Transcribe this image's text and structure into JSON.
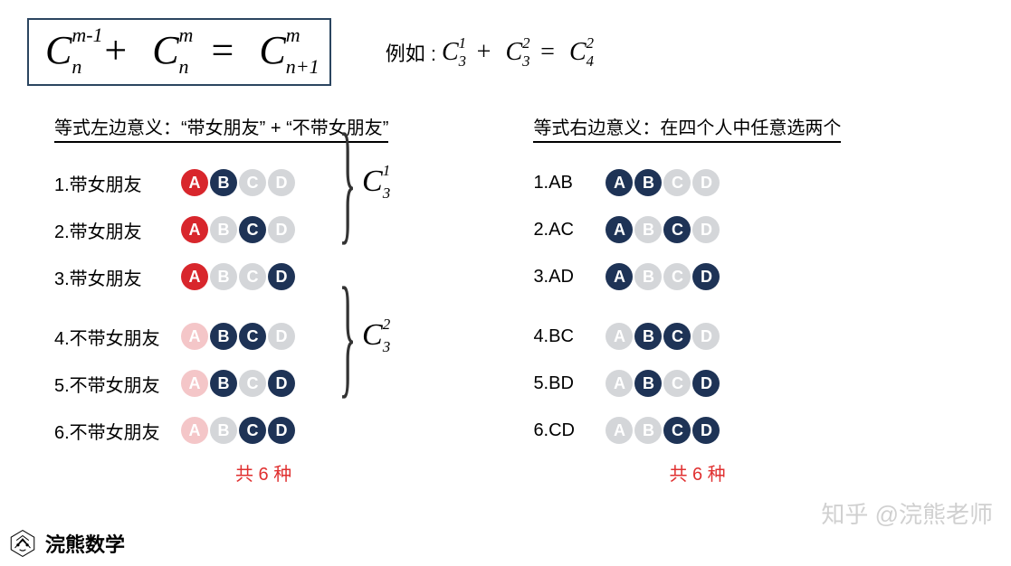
{
  "colors": {
    "border": "#2b4560",
    "red": "#d8262c",
    "navy": "#1e3356",
    "pink": "#f4c6c8",
    "grey": "#d4d6d9",
    "totalText": "#e03030"
  },
  "formula": {
    "t1": {
      "c": "C",
      "sup": "m-1",
      "sub": "n"
    },
    "plus": "+",
    "t2": {
      "c": "C",
      "sup": "m",
      "sub": "n"
    },
    "eq": "=",
    "t3": {
      "c": "C",
      "sup": "m",
      "sub": "n+1"
    }
  },
  "example": {
    "prefix": "例如 :",
    "t1": {
      "c": "C",
      "sup": "1",
      "sub": "3"
    },
    "plus": "+",
    "t2": {
      "c": "C",
      "sup": "2",
      "sub": "3"
    },
    "eq": "=",
    "t3": {
      "c": "C",
      "sup": "2",
      "sub": "4"
    }
  },
  "left": {
    "title": "等式左边意义：“带女朋友” + “不带女朋友”",
    "group1Label": {
      "c": "C",
      "sup": "1",
      "sub": "3"
    },
    "group2Label": {
      "c": "C",
      "sup": "2",
      "sub": "3"
    },
    "rows": [
      {
        "label": "1.带女朋友",
        "letters": [
          "A",
          "B",
          "C",
          "D"
        ],
        "colors": [
          "red",
          "navy",
          "grey",
          "grey"
        ]
      },
      {
        "label": "2.带女朋友",
        "letters": [
          "A",
          "B",
          "C",
          "D"
        ],
        "colors": [
          "red",
          "grey",
          "navy",
          "grey"
        ]
      },
      {
        "label": "3.带女朋友",
        "letters": [
          "A",
          "B",
          "C",
          "D"
        ],
        "colors": [
          "red",
          "grey",
          "grey",
          "navy"
        ]
      },
      {
        "label": "4.不带女朋友",
        "letters": [
          "A",
          "B",
          "C",
          "D"
        ],
        "colors": [
          "pink",
          "navy",
          "navy",
          "grey"
        ]
      },
      {
        "label": "5.不带女朋友",
        "letters": [
          "A",
          "B",
          "C",
          "D"
        ],
        "colors": [
          "pink",
          "navy",
          "grey",
          "navy"
        ]
      },
      {
        "label": "6.不带女朋友",
        "letters": [
          "A",
          "B",
          "C",
          "D"
        ],
        "colors": [
          "pink",
          "grey",
          "navy",
          "navy"
        ]
      }
    ],
    "total": "共 6 种"
  },
  "right": {
    "title": "等式右边意义：在四个人中任意选两个",
    "rows": [
      {
        "label": "1.AB",
        "letters": [
          "A",
          "B",
          "C",
          "D"
        ],
        "colors": [
          "navy",
          "navy",
          "grey",
          "grey"
        ]
      },
      {
        "label": "2.AC",
        "letters": [
          "A",
          "B",
          "C",
          "D"
        ],
        "colors": [
          "navy",
          "grey",
          "navy",
          "grey"
        ]
      },
      {
        "label": "3.AD",
        "letters": [
          "A",
          "B",
          "C",
          "D"
        ],
        "colors": [
          "navy",
          "grey",
          "grey",
          "navy"
        ]
      },
      {
        "label": "4.BC",
        "letters": [
          "A",
          "B",
          "C",
          "D"
        ],
        "colors": [
          "grey",
          "navy",
          "navy",
          "grey"
        ]
      },
      {
        "label": "5.BD",
        "letters": [
          "A",
          "B",
          "C",
          "D"
        ],
        "colors": [
          "grey",
          "navy",
          "grey",
          "navy"
        ]
      },
      {
        "label": "6.CD",
        "letters": [
          "A",
          "B",
          "C",
          "D"
        ],
        "colors": [
          "grey",
          "grey",
          "navy",
          "navy"
        ]
      }
    ],
    "total": "共 6 种"
  },
  "footer": {
    "brand": "浣熊数学"
  },
  "watermark": "知乎 @浣熊老师"
}
